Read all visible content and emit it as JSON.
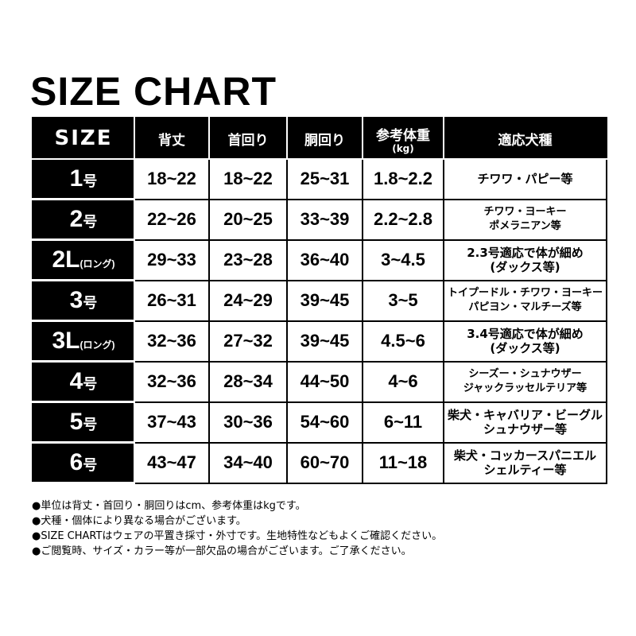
{
  "title": "SIZE CHART",
  "headers": [
    "SIZE",
    "背丈",
    "首回り",
    "胴回り",
    "参考体重",
    "適応犬種"
  ],
  "weight_unit": "(kg)",
  "rows": [
    {
      "size": "1",
      "suffix": "号",
      "back": "18~22",
      "neck": "18~22",
      "chest": "25~31",
      "weight": "1.8~2.2",
      "breed1": "チワワ・パピー等",
      "breed2": ""
    },
    {
      "size": "2",
      "suffix": "号",
      "back": "22~26",
      "neck": "20~25",
      "chest": "33~39",
      "weight": "2.2~2.8",
      "breed1": "チワワ・ヨーキー",
      "breed2": "ポメラニアン等"
    },
    {
      "size": "2L",
      "suffix": "(ロング)",
      "back": "29~33",
      "neck": "23~28",
      "chest": "36~40",
      "weight": "3~4.5",
      "breed1": "2.3号適応で体が細め",
      "breed2": "(ダックス等)"
    },
    {
      "size": "3",
      "suffix": "号",
      "back": "26~31",
      "neck": "24~29",
      "chest": "39~45",
      "weight": "3~5",
      "breed1": "トイプードル・チワワ・ヨーキー",
      "breed2": "パピヨン・マルチーズ等"
    },
    {
      "size": "3L",
      "suffix": "(ロング)",
      "back": "32~36",
      "neck": "27~32",
      "chest": "39~45",
      "weight": "4.5~6",
      "breed1": "3.4号適応で体が細め",
      "breed2": "(ダックス等)"
    },
    {
      "size": "4",
      "suffix": "号",
      "back": "32~36",
      "neck": "28~34",
      "chest": "44~50",
      "weight": "4~6",
      "breed1": "シーズー・シュナウザー",
      "breed2": "ジャックラッセルテリア等"
    },
    {
      "size": "5",
      "suffix": "号",
      "back": "37~43",
      "neck": "30~36",
      "chest": "54~60",
      "weight": "6~11",
      "breed1": "柴犬・キャバリア・ビーグル",
      "breed2": "シュナウザー等"
    },
    {
      "size": "6",
      "suffix": "号",
      "back": "43~47",
      "neck": "34~40",
      "chest": "60~70",
      "weight": "11~18",
      "breed1": "柴犬・コッカースパニエル",
      "breed2": "シェルティー等"
    }
  ],
  "notes": [
    "●単位は背丈・首回り・胴回りはcm、参考体重はkgです。",
    "●犬種・個体により異なる場合がございます。",
    "●SIZE CHARTはウェアの平置き採寸・外寸です。生地特性などもよくご確認ください。",
    "●ご閲覧時、サイズ・カラー等が一部欠品の場合がございます。ご了承ください。"
  ]
}
